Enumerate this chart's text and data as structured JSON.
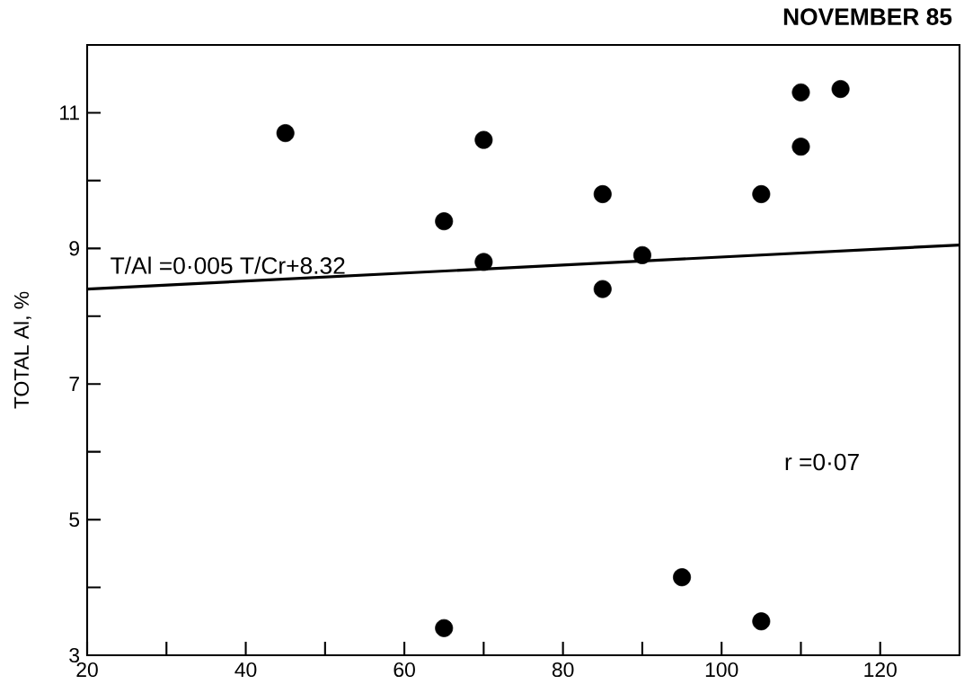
{
  "chart_data": {
    "type": "scatter",
    "title": "NOVEMBER 85",
    "ylabel": "TOTAL Al, %",
    "annotations": [
      "T/Al =0·005  T/Cr+8.32",
      "r =0·07"
    ],
    "xlim": [
      20,
      130
    ],
    "ylim": [
      3,
      12
    ],
    "xticks": [
      20,
      {
        "value": 30,
        "label": null
      },
      40,
      {
        "value": 50,
        "label": null
      },
      60,
      {
        "value": 70,
        "label": null
      },
      80,
      {
        "value": 90,
        "label": null
      },
      100,
      {
        "value": 110,
        "label": null
      },
      120
    ],
    "yticks": [
      3,
      {
        "value": 4,
        "label": null
      },
      5,
      {
        "value": 6,
        "label": null
      },
      7,
      {
        "value": 8,
        "label": null
      },
      9,
      {
        "value": 10,
        "label": null
      },
      11,
      {
        "value": 12,
        "label": null
      }
    ],
    "series": [
      {
        "color": "#000000",
        "marker": "circle",
        "x": [
          45,
          65,
          70,
          70,
          85,
          85,
          90,
          95,
          65,
          105,
          105,
          110,
          110,
          115
        ],
        "values": [
          10.7,
          9.4,
          10.6,
          8.8,
          9.8,
          8.4,
          8.9,
          4.15,
          3.4,
          9.8,
          3.5,
          10.5,
          11.3,
          11.35
        ]
      },
      {
        "type": "line",
        "color": "#000000",
        "marker": "none",
        "line_style": "solid",
        "x": [
          20,
          130
        ],
        "values": [
          8.4,
          9.05
        ]
      }
    ]
  }
}
